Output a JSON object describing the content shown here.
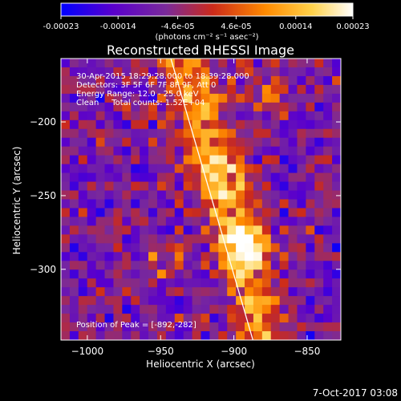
{
  "footer": {
    "timestamp": "7-Oct-2017 03:08"
  },
  "chart_data": {
    "type": "heatmap",
    "title": "Reconstructed RHESSI Image",
    "xlabel": "Heliocentric X (arcsec)",
    "ylabel": "Heliocentric Y (arcsec)",
    "xlim": [
      -1018,
      -827
    ],
    "ylim": [
      -348,
      -157
    ],
    "xticks": [
      -1000,
      -950,
      -900,
      -850
    ],
    "xtick_labels": [
      "−1000",
      "−950",
      "−900",
      "−850"
    ],
    "yticks": [
      -200,
      -250,
      -300
    ],
    "ytick_labels": [
      "−200",
      "−250",
      "−300"
    ],
    "colorbar": {
      "range": [
        -0.00023,
        0.00023
      ],
      "tick_values": [
        -0.00023,
        -0.00014,
        -4.6e-05,
        4.6e-05,
        0.00014,
        0.00023
      ],
      "tick_labels": [
        "-0.00023",
        "-0.00014",
        "-4.6e-05",
        "4.6e-05",
        "0.00014",
        "0.00023"
      ],
      "units_label": "(photons cm⁻² s⁻¹ asec⁻²)",
      "colormap": [
        "#0000ff",
        "#5a00cc",
        "#7a2a9a",
        "#cc2a1a",
        "#ff8a00",
        "#ffd24a",
        "#ffffff"
      ]
    },
    "annotations": [
      "30-Apr-2015 18:29:28.000 to 18:39:28.000",
      "Detectors: 3F 5F 6F 7F 8F 9F, Att 0",
      "Energy Range: 12.0 - 25.0 keV",
      "Clean     Total counts: 1.52E+04"
    ],
    "peak": {
      "label": "Position of Peak = [-892,-282]",
      "x": -892,
      "y": -282
    },
    "limb_line": [
      {
        "x": -943,
        "y": -157
      },
      {
        "x": -887,
        "y": -348
      }
    ]
  }
}
